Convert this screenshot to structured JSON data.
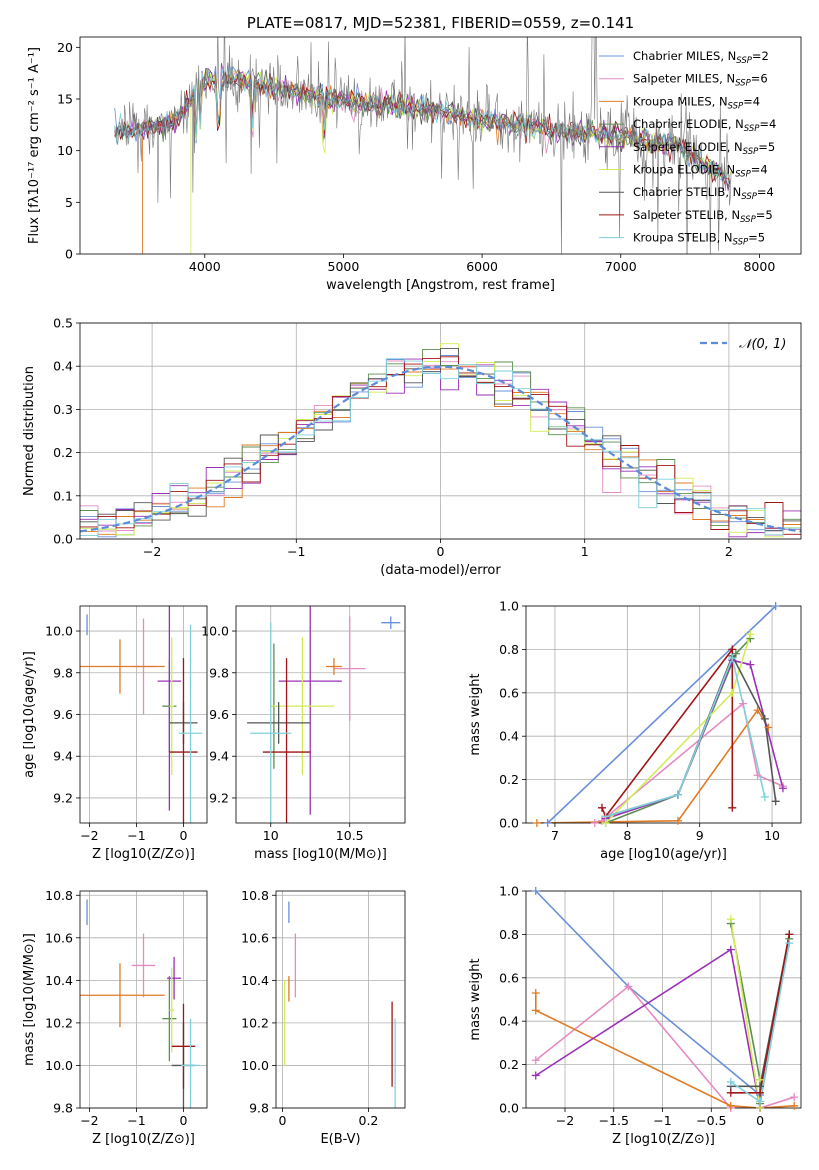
{
  "palette": [
    "#6a8fd8",
    "#e58bc3",
    "#e07b25",
    "#5c8f50",
    "#9b30b7",
    "#d2ec5a",
    "#555555",
    "#a01515",
    "#7fd0dd"
  ],
  "chart_data": [
    {
      "id": "spectrum",
      "type": "line",
      "title": "PLATE=0817, MJD=52381, FIBERID=0559, z=0.141",
      "xlabel": "wavelength [Angstrom, rest frame]",
      "ylabel": "Flux [fλ10⁻¹⁷ erg cm⁻² s⁻¹ A⁻¹]",
      "xlim": [
        3100,
        8300
      ],
      "ylim": [
        0,
        21
      ],
      "xticks": [
        4000,
        5000,
        6000,
        7000,
        8000
      ],
      "yticks": [
        0,
        5,
        10,
        15,
        20
      ],
      "grid": false,
      "legend": "top-right",
      "legend_entries": [
        "Chabrier MILES, N_SSP=2",
        "Salpeter MILES, N_SSP=6",
        "Kroupa MILES, N_SSP=4",
        "Chabrier ELODIE, N_SSP=4",
        "Salpeter ELODIE, N_SSP=5",
        "Kroupa ELODIE, N_SSP=4",
        "Chabrier STELIB, N_SSP=4",
        "Salpeter STELIB, N_SSP=5",
        "Kroupa STELIB, N_SSP=5"
      ],
      "continuum": {
        "x": [
          3350,
          3550,
          3800,
          4000,
          4300,
          4700,
          5200,
          5600,
          6000,
          6500,
          7000,
          7400,
          7800
        ],
        "y": [
          12,
          12,
          13,
          17,
          16.8,
          15.5,
          14.5,
          14,
          13,
          12,
          11.5,
          10.5,
          7
        ]
      }
    },
    {
      "id": "residuals",
      "type": "step",
      "xlabel": "(data-model)/error",
      "ylabel": "Normed distribution",
      "xlim": [
        -2.5,
        2.5
      ],
      "ylim": [
        0,
        0.5
      ],
      "xticks": [
        -2,
        -1,
        0,
        1,
        2
      ],
      "yticks": [
        0.0,
        0.1,
        0.2,
        0.3,
        0.4,
        0.5
      ],
      "grid": true,
      "legend": "top-right",
      "legend_label": "𝒩(0, 1)"
    },
    {
      "id": "Z-age",
      "type": "errorbar",
      "xlabel": "Z [log10(Z/Z⊙)]",
      "ylabel": "age  [log10(age/yr)]",
      "xlim": [
        -2.2,
        0.5
      ],
      "ylim": [
        9.08,
        10.12
      ],
      "xticks": [
        -2,
        -1,
        0
      ],
      "yticks": [
        9.2,
        9.4,
        9.6,
        9.8,
        10.0
      ],
      "grid": true,
      "points": [
        {
          "x": -2.05,
          "y": 10.03,
          "ex": 0,
          "ey": 0.05,
          "c": 0
        },
        {
          "x": -0.85,
          "y": 9.83,
          "ex": 0.25,
          "ey": 0.23,
          "c": 1
        },
        {
          "x": -1.35,
          "y": 9.83,
          "ex": 0.95,
          "ey": 0.13,
          "c": 2
        },
        {
          "x": -0.3,
          "y": 9.64,
          "ex": 0.15,
          "ey": 0.22,
          "c": 3
        },
        {
          "x": -0.3,
          "y": 9.76,
          "ex": 0.25,
          "ey": 0.62,
          "c": 4
        },
        {
          "x": -0.25,
          "y": 9.64,
          "ex": 0.05,
          "ey": 0.33,
          "c": 5
        },
        {
          "x": 0.0,
          "y": 9.56,
          "ex": 0.3,
          "ey": 0.1,
          "c": 6
        },
        {
          "x": 0.0,
          "y": 9.42,
          "ex": 0.3,
          "ey": 0.45,
          "c": 7
        },
        {
          "x": 0.15,
          "y": 9.51,
          "ex": 0.25,
          "ey": 0.52,
          "c": 8
        }
      ]
    },
    {
      "id": "mass-age",
      "type": "errorbar",
      "xlabel": "mass [log10(M/M⊙)]",
      "ylabel": "",
      "xlim": [
        9.78,
        10.85
      ],
      "ylim": [
        9.08,
        10.12
      ],
      "xticks": [
        10.0,
        10.5
      ],
      "yticks": [
        9.2,
        9.4,
        9.6,
        9.8,
        10.0
      ],
      "grid": true,
      "points": [
        {
          "x": 10.76,
          "y": 10.04,
          "ex": 0.06,
          "ey": 0.03,
          "c": 0
        },
        {
          "x": 10.5,
          "y": 9.82,
          "ex": 0.1,
          "ey": 0.25,
          "c": 1
        },
        {
          "x": 10.4,
          "y": 9.83,
          "ex": 0.05,
          "ey": 0.04,
          "c": 2
        },
        {
          "x": 10.02,
          "y": 9.64,
          "ex": 0.02,
          "ey": 0.3,
          "c": 3
        },
        {
          "x": 10.25,
          "y": 9.76,
          "ex": 0.2,
          "ey": 0.64,
          "c": 4
        },
        {
          "x": 10.2,
          "y": 9.64,
          "ex": 0.2,
          "ey": 0.33,
          "c": 5
        },
        {
          "x": 10.05,
          "y": 9.56,
          "ex": 0.2,
          "ey": 0.1,
          "c": 6
        },
        {
          "x": 10.1,
          "y": 9.42,
          "ex": 0.15,
          "ey": 0.45,
          "c": 7
        },
        {
          "x": 10.0,
          "y": 9.51,
          "ex": 0.13,
          "ey": 0.53,
          "c": 8
        }
      ]
    },
    {
      "id": "weight-age",
      "type": "line",
      "xlabel": "age  [log10(age/yr)]",
      "ylabel": "mass weight",
      "xlim": [
        6.6,
        10.4
      ],
      "ylim": [
        0,
        1
      ],
      "xticks": [
        7,
        8,
        9,
        10
      ],
      "yticks": [
        0.0,
        0.2,
        0.4,
        0.6,
        0.8,
        1.0
      ],
      "grid": true,
      "series": [
        {
          "c": 0,
          "x": [
            6.9,
            10.05
          ],
          "y": [
            0.0,
            1.0
          ]
        },
        {
          "c": 1,
          "x": [
            7.55,
            7.65,
            9.6,
            9.8,
            10.15
          ],
          "y": [
            0.0,
            0.01,
            0.55,
            0.22,
            0.17
          ]
        },
        {
          "c": 2,
          "x": [
            6.75,
            8.7,
            9.8,
            9.95
          ],
          "y": [
            0.0,
            0.01,
            0.52,
            0.44
          ]
        },
        {
          "c": 3,
          "x": [
            7.7,
            8.7,
            9.5,
            9.7
          ],
          "y": [
            0.0,
            0.13,
            0.78,
            0.85
          ]
        },
        {
          "c": 4,
          "x": [
            7.7,
            8.7,
            9.45,
            9.7,
            10.15
          ],
          "y": [
            0.02,
            0.13,
            0.75,
            0.73,
            0.16
          ]
        },
        {
          "c": 5,
          "x": [
            7.7,
            9.45,
            9.7
          ],
          "y": [
            0.0,
            0.6,
            0.87
          ]
        },
        {
          "c": 6,
          "x": [
            7.7,
            8.7,
            9.45,
            9.9,
            10.05
          ],
          "y": [
            0.03,
            0.13,
            0.77,
            0.48,
            0.1
          ]
        },
        {
          "c": 7,
          "x": [
            7.65,
            7.7,
            9.45,
            9.45
          ],
          "y": [
            0.07,
            0.03,
            0.8,
            0.07
          ]
        },
        {
          "c": 8,
          "x": [
            7.7,
            8.7,
            9.45,
            9.9
          ],
          "y": [
            0.03,
            0.13,
            0.76,
            0.12
          ]
        }
      ]
    },
    {
      "id": "Z-mass",
      "type": "errorbar",
      "xlabel": "Z [log10(Z/Z⊙)]",
      "ylabel": "mass [log10(M/M⊙)]",
      "xlim": [
        -2.2,
        0.5
      ],
      "ylim": [
        9.8,
        10.82
      ],
      "xticks": [
        -2,
        -1,
        0
      ],
      "yticks": [
        9.8,
        10.0,
        10.2,
        10.4,
        10.6,
        10.8
      ],
      "grid": true,
      "points": [
        {
          "x": -2.05,
          "y": 10.72,
          "ex": 0,
          "ey": 0.06,
          "c": 0
        },
        {
          "x": -0.85,
          "y": 10.47,
          "ex": 0.25,
          "ey": 0.15,
          "c": 1
        },
        {
          "x": -1.35,
          "y": 10.33,
          "ex": 0.95,
          "ey": 0.15,
          "c": 2
        },
        {
          "x": -0.3,
          "y": 10.22,
          "ex": 0.15,
          "ey": 0.2,
          "c": 3
        },
        {
          "x": -0.2,
          "y": 10.41,
          "ex": 0.15,
          "ey": 0.1,
          "c": 4
        },
        {
          "x": -0.25,
          "y": 10.26,
          "ex": 0.05,
          "ey": 0.2,
          "c": 5
        },
        {
          "x": 0.0,
          "y": 10.0,
          "ex": 0.25,
          "ey": 0.2,
          "c": 6
        },
        {
          "x": 0.0,
          "y": 10.09,
          "ex": 0.25,
          "ey": 0.2,
          "c": 7
        },
        {
          "x": 0.15,
          "y": 10.0,
          "ex": 0.2,
          "ey": 0.22,
          "c": 8
        }
      ]
    },
    {
      "id": "EBV-mass",
      "type": "errorbar",
      "xlabel": "E(B-V)",
      "ylabel": "",
      "xlim": [
        -0.015,
        0.285
      ],
      "ylim": [
        9.8,
        10.82
      ],
      "xticks": [
        0.0,
        0.2
      ],
      "yticks": [
        9.8,
        10.0,
        10.2,
        10.4,
        10.6,
        10.8
      ],
      "grid": true,
      "points": [
        {
          "x": 0.015,
          "y": 10.72,
          "ex": 0,
          "ey": 0.05,
          "c": 0
        },
        {
          "x": 0.03,
          "y": 10.47,
          "ex": 0,
          "ey": 0.15,
          "c": 1
        },
        {
          "x": 0.015,
          "y": 10.36,
          "ex": 0,
          "ey": 0.06,
          "c": 2
        },
        {
          "x": 0.005,
          "y": 10.2,
          "ex": 0,
          "ey": 0.2,
          "c": 5
        },
        {
          "x": 0.255,
          "y": 10.1,
          "ex": 0,
          "ey": 0.2,
          "c": 7
        },
        {
          "x": 0.262,
          "y": 10.0,
          "ex": 0,
          "ey": 0.22,
          "c": 8
        }
      ]
    },
    {
      "id": "weight-Z",
      "type": "line",
      "xlabel": "Z [log10(Z/Z⊙)]",
      "ylabel": "mass weight",
      "xlim": [
        -2.4,
        0.42
      ],
      "ylim": [
        0,
        1
      ],
      "xticks": [
        -2.0,
        -1.5,
        -1.0,
        -0.5,
        0.0
      ],
      "yticks": [
        0.0,
        0.2,
        0.4,
        0.6,
        0.8,
        1.0
      ],
      "grid": true,
      "series": [
        {
          "c": 0,
          "x": [
            -2.3,
            -1.35,
            0.0,
            0.0
          ],
          "y": [
            1.0,
            0.56,
            0.06,
            0.0
          ]
        },
        {
          "c": 1,
          "x": [
            -2.3,
            -1.35,
            -0.3,
            0.0,
            0.35
          ],
          "y": [
            0.22,
            0.56,
            0.0,
            0.0,
            0.05
          ]
        },
        {
          "c": 2,
          "x": [
            -2.3,
            -2.3,
            -0.3,
            0.0,
            0.35
          ],
          "y": [
            0.53,
            0.45,
            0.01,
            0.0,
            0.01
          ]
        },
        {
          "c": 3,
          "x": [
            -0.3,
            0.0,
            0.0,
            0.3
          ],
          "y": [
            0.85,
            0.13,
            0.02,
            0.78
          ]
        },
        {
          "c": 4,
          "x": [
            -2.3,
            -0.3,
            0.0,
            0.0
          ],
          "y": [
            0.15,
            0.73,
            0.0,
            0.0
          ]
        },
        {
          "c": 5,
          "x": [
            -0.3,
            0.0,
            0.0
          ],
          "y": [
            0.87,
            0.0,
            0.13
          ]
        },
        {
          "c": 6,
          "x": [
            -0.3,
            0.0,
            0.3
          ],
          "y": [
            0.1,
            0.1,
            0.8
          ]
        },
        {
          "c": 7,
          "x": [
            -0.3,
            0.0,
            0.3
          ],
          "y": [
            0.07,
            0.07,
            0.8
          ]
        },
        {
          "c": 8,
          "x": [
            -0.3,
            0.0,
            0.3
          ],
          "y": [
            0.12,
            0.03,
            0.76
          ]
        }
      ]
    }
  ]
}
